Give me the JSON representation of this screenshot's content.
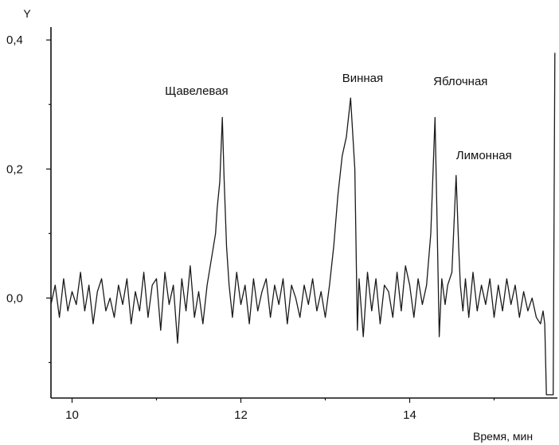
{
  "chart_data": {
    "type": "line",
    "title": "",
    "xlabel": "Время, мин",
    "ylabel": "Y",
    "xlim": [
      9.75,
      15.75
    ],
    "ylim": [
      -0.155,
      0.42
    ],
    "x_ticks": [
      10,
      12,
      14
    ],
    "x_tick_labels": [
      "10",
      "12",
      "14"
    ],
    "y_ticks": [
      0.0,
      0.2,
      0.4
    ],
    "y_tick_labels": [
      "0,0",
      "0,2",
      "0,4"
    ],
    "grid": false,
    "legend": "none",
    "series": [
      {
        "x": [
          9.75,
          9.8,
          9.85,
          9.9,
          9.95,
          10.0,
          10.05,
          10.1,
          10.15,
          10.2,
          10.25,
          10.3,
          10.35,
          10.4,
          10.45,
          10.5,
          10.55,
          10.6,
          10.65,
          10.7,
          10.75,
          10.8,
          10.85,
          10.9,
          10.95,
          11.0,
          11.05,
          11.1,
          11.15,
          11.2,
          11.25,
          11.3,
          11.35,
          11.4,
          11.45,
          11.5,
          11.55,
          11.6,
          11.65,
          11.7,
          11.72,
          11.75,
          11.78,
          11.8,
          11.83,
          11.86,
          11.9,
          11.95,
          12.0,
          12.05,
          12.1,
          12.15,
          12.2,
          12.25,
          12.3,
          12.35,
          12.4,
          12.45,
          12.5,
          12.55,
          12.6,
          12.65,
          12.7,
          12.75,
          12.8,
          12.85,
          12.9,
          12.95,
          13.0,
          13.05,
          13.1,
          13.15,
          13.2,
          13.25,
          13.3,
          13.35,
          13.38,
          13.4,
          13.45,
          13.5,
          13.55,
          13.6,
          13.65,
          13.7,
          13.75,
          13.8,
          13.85,
          13.9,
          13.95,
          14.0,
          14.05,
          14.1,
          14.15,
          14.2,
          14.25,
          14.3,
          14.32,
          14.35,
          14.38,
          14.42,
          14.45,
          14.5,
          14.55,
          14.58,
          14.6,
          14.63,
          14.66,
          14.7,
          14.75,
          14.8,
          14.85,
          14.9,
          14.95,
          15.0,
          15.05,
          15.1,
          15.15,
          15.2,
          15.25,
          15.3,
          15.35,
          15.4,
          15.45,
          15.5,
          15.55,
          15.58,
          15.6,
          15.62,
          15.65,
          15.7,
          15.72
        ],
        "y": [
          -0.01,
          0.02,
          -0.03,
          0.03,
          -0.02,
          0.01,
          -0.01,
          0.04,
          -0.02,
          0.02,
          -0.04,
          0.01,
          0.03,
          -0.02,
          0.0,
          -0.03,
          0.02,
          -0.01,
          0.03,
          -0.04,
          0.01,
          -0.02,
          0.04,
          -0.03,
          0.02,
          0.03,
          -0.05,
          0.04,
          -0.01,
          0.02,
          -0.07,
          0.03,
          -0.02,
          0.05,
          -0.03,
          0.01,
          -0.04,
          0.02,
          0.06,
          0.1,
          0.14,
          0.18,
          0.28,
          0.19,
          0.08,
          0.02,
          -0.03,
          0.04,
          -0.01,
          0.02,
          -0.04,
          0.03,
          -0.02,
          0.01,
          0.03,
          -0.03,
          0.02,
          -0.01,
          0.03,
          -0.04,
          0.02,
          0.0,
          -0.03,
          0.02,
          -0.01,
          0.03,
          -0.02,
          0.01,
          -0.03,
          0.02,
          0.08,
          0.16,
          0.22,
          0.25,
          0.31,
          0.2,
          -0.05,
          0.03,
          -0.06,
          0.04,
          -0.02,
          0.03,
          -0.04,
          0.02,
          0.01,
          -0.03,
          0.04,
          -0.02,
          0.05,
          0.02,
          -0.03,
          0.03,
          -0.01,
          0.02,
          0.1,
          0.28,
          0.15,
          -0.06,
          0.03,
          -0.01,
          0.02,
          0.04,
          0.19,
          0.08,
          0.02,
          -0.02,
          0.03,
          -0.03,
          0.04,
          -0.02,
          0.02,
          -0.01,
          0.03,
          -0.03,
          0.02,
          -0.02,
          0.03,
          -0.01,
          0.02,
          -0.03,
          0.01,
          -0.02,
          0.0,
          -0.03,
          -0.04,
          -0.02,
          -0.04,
          -0.15,
          -0.15,
          -0.15,
          0.38
        ]
      }
    ],
    "annotations": [
      {
        "text": "Щавелевая",
        "x": 11.1,
        "y": 0.315
      },
      {
        "text": "Винная",
        "x": 13.2,
        "y": 0.335
      },
      {
        "text": "Яблочная",
        "x": 14.28,
        "y": 0.33
      },
      {
        "text": "Лимонная",
        "x": 14.55,
        "y": 0.215
      }
    ]
  }
}
